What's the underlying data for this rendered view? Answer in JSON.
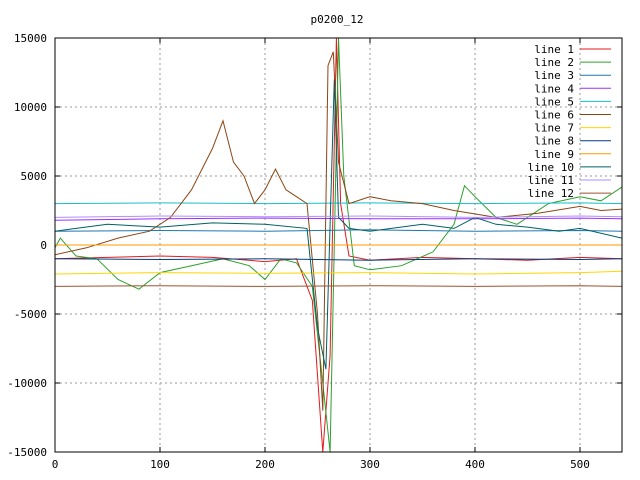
{
  "chart_data": {
    "type": "line",
    "title": "p0200_12",
    "xlabel": "",
    "ylabel": "",
    "xlim": [
      0,
      540
    ],
    "ylim": [
      -15000,
      15000
    ],
    "xticks": [
      0,
      100,
      200,
      300,
      400,
      500
    ],
    "yticks": [
      -15000,
      -10000,
      -5000,
      0,
      5000,
      10000,
      15000
    ],
    "grid": true,
    "legend_position": "top-right",
    "series": [
      {
        "name": "line 1",
        "color": "#e41a1c",
        "x": [
          0,
          50,
          100,
          150,
          200,
          230,
          245,
          255,
          262,
          268,
          272,
          280,
          300,
          350,
          400,
          450,
          500,
          540
        ],
        "y": [
          -1000,
          -900,
          -800,
          -900,
          -1200,
          -1000,
          -4000,
          -15000,
          -8000,
          15000,
          3000,
          -800,
          -1100,
          -900,
          -1000,
          -1100,
          -900,
          -1000
        ]
      },
      {
        "name": "line 2",
        "color": "#2ca02c",
        "x": [
          0,
          5,
          20,
          40,
          60,
          80,
          100,
          130,
          160,
          185,
          200,
          215,
          230,
          245,
          255,
          262,
          270,
          275,
          285,
          300,
          330,
          360,
          380,
          390,
          400,
          420,
          440,
          470,
          500,
          520,
          540
        ],
        "y": [
          -200,
          500,
          -800,
          -1000,
          -2500,
          -3200,
          -2000,
          -1500,
          -1000,
          -1500,
          -2500,
          -1000,
          -1300,
          -3000,
          -10000,
          -15000,
          15000,
          5000,
          -1500,
          -1800,
          -1500,
          -500,
          1500,
          4300,
          3500,
          2000,
          1500,
          3000,
          3500,
          3200,
          4200
        ]
      },
      {
        "name": "line 3",
        "color": "#1f77b4",
        "x": [
          0,
          100,
          200,
          300,
          400,
          500,
          540
        ],
        "y": [
          1000,
          1050,
          1000,
          1100,
          1000,
          1050,
          1000
        ]
      },
      {
        "name": "line 4",
        "color": "#9b30ff",
        "x": [
          0,
          100,
          200,
          300,
          400,
          500,
          540
        ],
        "y": [
          1800,
          1900,
          1950,
          1900,
          1900,
          1950,
          1900
        ]
      },
      {
        "name": "line 5",
        "color": "#17becf",
        "x": [
          0,
          100,
          200,
          300,
          400,
          500,
          540
        ],
        "y": [
          3000,
          3050,
          3000,
          3050,
          3000,
          3050,
          3000
        ]
      },
      {
        "name": "line 6",
        "color": "#8b4513",
        "x": [
          0,
          30,
          60,
          90,
          110,
          130,
          150,
          160,
          170,
          180,
          190,
          200,
          210,
          220,
          230,
          240,
          250,
          255,
          260,
          265,
          270,
          280,
          300,
          320,
          350,
          380,
          420,
          460,
          500,
          520,
          540
        ],
        "y": [
          -700,
          -200,
          500,
          1000,
          2000,
          4000,
          7000,
          9000,
          6000,
          5000,
          3000,
          4000,
          5500,
          4000,
          3500,
          3000,
          -5000,
          -12000,
          13000,
          14000,
          6000,
          3000,
          3500,
          3200,
          3000,
          2500,
          2000,
          2300,
          2800,
          2500,
          2600
        ]
      },
      {
        "name": "line 7",
        "color": "#ffd700",
        "x": [
          0,
          100,
          200,
          300,
          400,
          500,
          540
        ],
        "y": [
          -2100,
          -2000,
          -2050,
          -2000,
          -2100,
          -2000,
          -1900
        ]
      },
      {
        "name": "line 8",
        "color": "#003f7f",
        "x": [
          0,
          100,
          200,
          300,
          400,
          500,
          540
        ],
        "y": [
          -1000,
          -1050,
          -1000,
          -1100,
          -1000,
          -1050,
          -1000
        ]
      },
      {
        "name": "line 9",
        "color": "#ff9900",
        "x": [
          0,
          100,
          200,
          300,
          400,
          500,
          540
        ],
        "y": [
          0,
          0,
          0,
          0,
          0,
          0,
          0
        ]
      },
      {
        "name": "line 10",
        "color": "#006064",
        "x": [
          0,
          20,
          50,
          100,
          150,
          200,
          240,
          250,
          258,
          266,
          270,
          280,
          300,
          350,
          380,
          400,
          420,
          450,
          480,
          500,
          540
        ],
        "y": [
          1000,
          1200,
          1500,
          1300,
          1600,
          1500,
          1200,
          -6000,
          -9000,
          12000,
          2000,
          1200,
          1000,
          1500,
          1200,
          2000,
          1500,
          1300,
          1000,
          1200,
          500
        ]
      },
      {
        "name": "line 11",
        "color": "#b28dff",
        "x": [
          0,
          100,
          200,
          300,
          400,
          500,
          540
        ],
        "y": [
          2000,
          2100,
          2050,
          2100,
          2000,
          2100,
          2050
        ]
      },
      {
        "name": "line 12",
        "color": "#a0522d",
        "x": [
          0,
          100,
          200,
          300,
          400,
          500,
          540
        ],
        "y": [
          -3000,
          -2950,
          -3000,
          -2950,
          -3000,
          -2950,
          -3000
        ]
      }
    ]
  }
}
